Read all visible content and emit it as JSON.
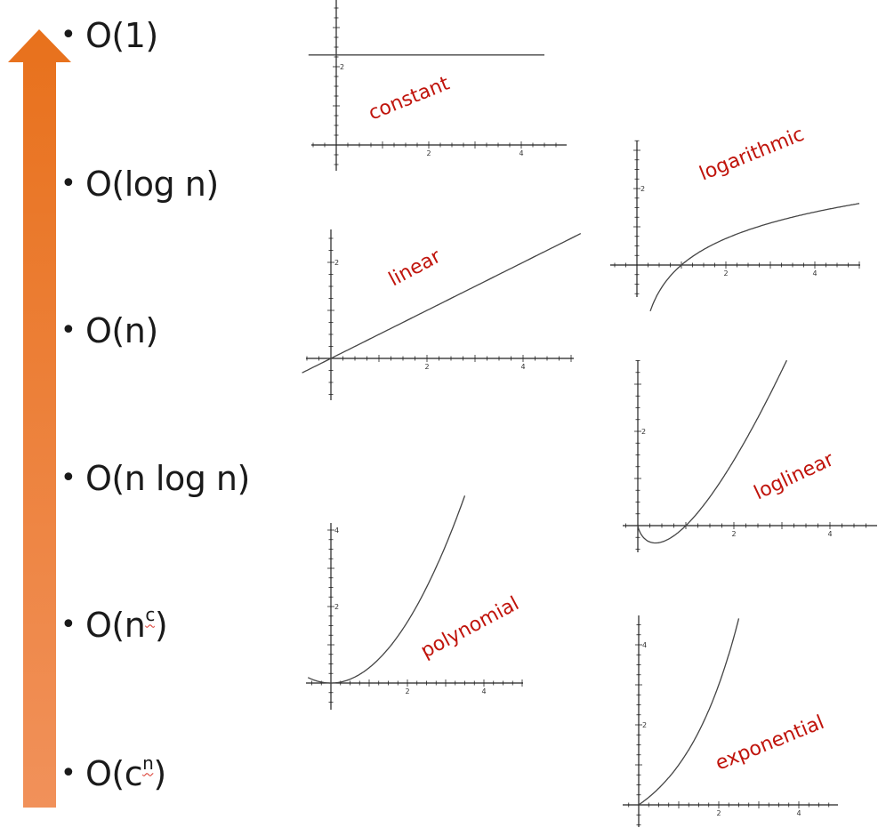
{
  "bullets": [
    {
      "base": "O(1)",
      "sup": ""
    },
    {
      "base": "O(log n)",
      "sup": ""
    },
    {
      "base": "O(n)",
      "sup": ""
    },
    {
      "base": "O(n log n)",
      "sup": ""
    },
    {
      "base": "O(n",
      "sup": "c",
      "close": ")"
    },
    {
      "base": "O(c",
      "sup": "n",
      "close": ")"
    }
  ],
  "bullet_symbol": "•",
  "arrow_colors": {
    "top": "#e8711c",
    "bottom": "#f1915a"
  },
  "curve_color": "#444444",
  "label_color": "#c0140c",
  "chart_data": [
    {
      "type": "line",
      "name": "constant",
      "label": "constant",
      "function": "y = 2.3",
      "x": [
        -0.6,
        4.5
      ],
      "ylim_ticks": [
        2
      ],
      "xlim_ticks": [
        2,
        4
      ]
    },
    {
      "type": "line",
      "name": "logarithmic",
      "label": "logarithmic",
      "function": "y = ln(x)",
      "x": [
        0.3,
        5
      ],
      "ylim_ticks": [
        2
      ],
      "xlim_ticks": [
        2,
        4
      ]
    },
    {
      "type": "line",
      "name": "linear",
      "label": "linear",
      "function": "y = 0.5x",
      "x": [
        -0.6,
        5.2
      ],
      "ylim_ticks": [
        2
      ],
      "xlim_ticks": [
        2,
        4
      ]
    },
    {
      "type": "line",
      "name": "loglinear",
      "label": "loglinear",
      "function": "y = x ln(x)",
      "x": [
        0,
        3.1
      ],
      "ylim_ticks": [
        2
      ],
      "xlim_ticks": [
        2,
        4
      ]
    },
    {
      "type": "line",
      "name": "polynomial",
      "label": "polynomial",
      "function": "y = x^2 / 2.5",
      "x": [
        -0.6,
        3.5
      ],
      "ylim_ticks": [
        2,
        4
      ],
      "xlim_ticks": [
        2,
        4
      ]
    },
    {
      "type": "line",
      "name": "exponential",
      "label": "exponential",
      "function": "y = 2^x - 1",
      "x": [
        0,
        2.5
      ],
      "ylim_ticks": [
        2,
        4
      ],
      "xlim_ticks": [
        2,
        4
      ]
    }
  ]
}
